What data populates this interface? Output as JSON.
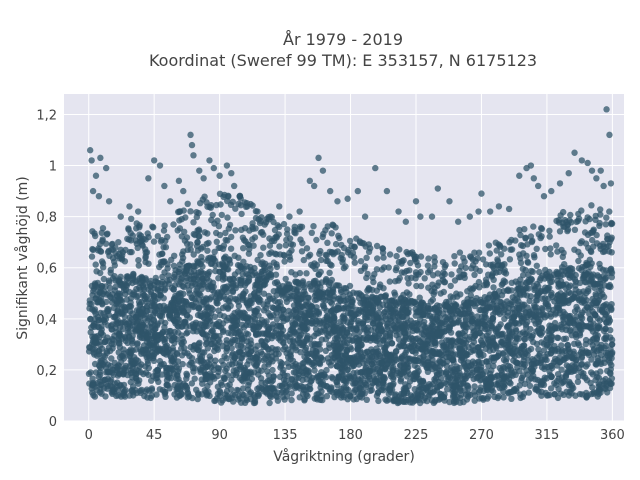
{
  "chart_data": {
    "type": "scatter",
    "title_line1": "År 1979 - 2019",
    "title_line2": "Koordinat (Sweref 99 TM): E 353157, N 6175123",
    "xlabel": "Vågriktning (grader)",
    "ylabel": "Signifikant våghöjd (m)",
    "xlim": [
      -17,
      368
    ],
    "ylim": [
      0,
      1.28
    ],
    "x_ticks": [
      0,
      45,
      90,
      135,
      180,
      225,
      270,
      315,
      360
    ],
    "x_tick_labels": [
      "0",
      "45",
      "90",
      "135",
      "180",
      "225",
      "270",
      "315",
      "360"
    ],
    "y_ticks": [
      0,
      0.2,
      0.4,
      0.6,
      0.8,
      1.0,
      1.2
    ],
    "y_tick_labels": [
      "0",
      "0,2",
      "0,4",
      "0,6",
      "0,8",
      "1",
      "1,2"
    ],
    "grid": true,
    "point_color": "#2f5469",
    "background_color": "#e5e5f0",
    "envelope": {
      "x": [
        0,
        15,
        30,
        45,
        60,
        75,
        90,
        105,
        120,
        135,
        150,
        165,
        180,
        195,
        210,
        225,
        240,
        255,
        270,
        285,
        300,
        315,
        330,
        345,
        360
      ],
      "upper": [
        0.68,
        0.72,
        0.74,
        0.7,
        0.76,
        0.82,
        0.84,
        0.82,
        0.76,
        0.72,
        0.7,
        0.72,
        0.66,
        0.64,
        0.62,
        0.6,
        0.58,
        0.6,
        0.62,
        0.65,
        0.7,
        0.74,
        0.77,
        0.8,
        0.8
      ],
      "lower": [
        0.09,
        0.09,
        0.09,
        0.09,
        0.09,
        0.08,
        0.07,
        0.07,
        0.07,
        0.07,
        0.08,
        0.08,
        0.08,
        0.08,
        0.07,
        0.07,
        0.07,
        0.07,
        0.08,
        0.08,
        0.09,
        0.09,
        0.09,
        0.09,
        0.09
      ]
    },
    "outliers": [
      {
        "x": 1,
        "y": 1.06
      },
      {
        "x": 2,
        "y": 1.02
      },
      {
        "x": 8,
        "y": 1.03
      },
      {
        "x": 5,
        "y": 0.96
      },
      {
        "x": 12,
        "y": 0.99
      },
      {
        "x": 3,
        "y": 0.9
      },
      {
        "x": 7,
        "y": 0.88
      },
      {
        "x": 14,
        "y": 0.86
      },
      {
        "x": 22,
        "y": 0.8
      },
      {
        "x": 28,
        "y": 0.84
      },
      {
        "x": 34,
        "y": 0.82
      },
      {
        "x": 41,
        "y": 0.95
      },
      {
        "x": 45,
        "y": 1.02
      },
      {
        "x": 49,
        "y": 1.0
      },
      {
        "x": 52,
        "y": 0.92
      },
      {
        "x": 56,
        "y": 0.86
      },
      {
        "x": 62,
        "y": 0.94
      },
      {
        "x": 65,
        "y": 0.9
      },
      {
        "x": 70,
        "y": 1.12
      },
      {
        "x": 71,
        "y": 1.08
      },
      {
        "x": 72,
        "y": 1.04
      },
      {
        "x": 76,
        "y": 0.98
      },
      {
        "x": 79,
        "y": 0.95
      },
      {
        "x": 83,
        "y": 1.02
      },
      {
        "x": 86,
        "y": 0.99
      },
      {
        "x": 90,
        "y": 0.96
      },
      {
        "x": 95,
        "y": 1.0
      },
      {
        "x": 98,
        "y": 0.97
      },
      {
        "x": 100,
        "y": 0.92
      },
      {
        "x": 104,
        "y": 0.88
      },
      {
        "x": 109,
        "y": 0.84
      },
      {
        "x": 116,
        "y": 0.82
      },
      {
        "x": 125,
        "y": 0.8
      },
      {
        "x": 131,
        "y": 0.84
      },
      {
        "x": 138,
        "y": 0.8
      },
      {
        "x": 145,
        "y": 0.82
      },
      {
        "x": 152,
        "y": 0.94
      },
      {
        "x": 155,
        "y": 0.92
      },
      {
        "x": 158,
        "y": 1.03
      },
      {
        "x": 161,
        "y": 0.98
      },
      {
        "x": 166,
        "y": 0.9
      },
      {
        "x": 171,
        "y": 0.86
      },
      {
        "x": 178,
        "y": 0.87
      },
      {
        "x": 185,
        "y": 0.9
      },
      {
        "x": 190,
        "y": 0.8
      },
      {
        "x": 197,
        "y": 0.99
      },
      {
        "x": 205,
        "y": 0.9
      },
      {
        "x": 213,
        "y": 0.82
      },
      {
        "x": 218,
        "y": 0.78
      },
      {
        "x": 225,
        "y": 0.86
      },
      {
        "x": 228,
        "y": 0.8
      },
      {
        "x": 236,
        "y": 0.8
      },
      {
        "x": 240,
        "y": 0.91
      },
      {
        "x": 248,
        "y": 0.86
      },
      {
        "x": 254,
        "y": 0.78
      },
      {
        "x": 262,
        "y": 0.8
      },
      {
        "x": 268,
        "y": 0.82
      },
      {
        "x": 270,
        "y": 0.89
      },
      {
        "x": 276,
        "y": 0.82
      },
      {
        "x": 282,
        "y": 0.84
      },
      {
        "x": 289,
        "y": 0.83
      },
      {
        "x": 296,
        "y": 0.96
      },
      {
        "x": 301,
        "y": 0.99
      },
      {
        "x": 304,
        "y": 1.0
      },
      {
        "x": 306,
        "y": 0.95
      },
      {
        "x": 309,
        "y": 0.92
      },
      {
        "x": 313,
        "y": 0.88
      },
      {
        "x": 318,
        "y": 0.9
      },
      {
        "x": 324,
        "y": 0.93
      },
      {
        "x": 330,
        "y": 0.97
      },
      {
        "x": 334,
        "y": 1.05
      },
      {
        "x": 339,
        "y": 1.02
      },
      {
        "x": 343,
        "y": 1.01
      },
      {
        "x": 346,
        "y": 0.98
      },
      {
        "x": 349,
        "y": 0.95
      },
      {
        "x": 352,
        "y": 0.98
      },
      {
        "x": 354,
        "y": 0.92
      },
      {
        "x": 356,
        "y": 1.22
      },
      {
        "x": 358,
        "y": 1.12
      },
      {
        "x": 359,
        "y": 0.93
      }
    ]
  }
}
